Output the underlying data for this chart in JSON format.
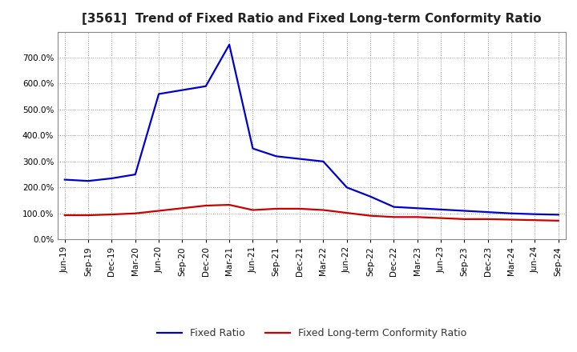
{
  "title": "[3561]  Trend of Fixed Ratio and Fixed Long-term Conformity Ratio",
  "title_fontsize": 11,
  "background_color": "#ffffff",
  "plot_bg_color": "#ffffff",
  "grid_color": "#999999",
  "fixed_ratio_color": "#0000cc",
  "fixed_ltcr_color": "#cc0000",
  "fixed_ratio_label": "Fixed Ratio",
  "fixed_ltcr_label": "Fixed Long-term Conformity Ratio",
  "ylim": [
    0.0,
    800.0
  ],
  "yticks": [
    0,
    100,
    200,
    300,
    400,
    500,
    600,
    700
  ],
  "fixed_ratio": [
    230,
    225,
    235,
    250,
    560,
    575,
    590,
    750,
    350,
    320,
    310,
    300,
    200,
    165,
    125,
    120,
    115,
    110,
    105,
    100,
    97,
    95
  ],
  "fixed_ltcr": [
    93,
    93,
    96,
    100,
    110,
    120,
    130,
    133,
    113,
    118,
    118,
    113,
    102,
    91,
    86,
    86,
    82,
    78,
    78,
    76,
    74,
    72
  ],
  "xtick_labels": [
    "Jun-19",
    "Sep-19",
    "Dec-19",
    "Mar-20",
    "Jun-20",
    "Sep-20",
    "Dec-20",
    "Mar-21",
    "Jun-21",
    "Sep-21",
    "Dec-21",
    "Mar-22",
    "Jun-22",
    "Sep-22",
    "Dec-22",
    "Mar-23",
    "Jun-23",
    "Sep-23",
    "Dec-23",
    "Mar-24",
    "Jun-24",
    "Sep-24"
  ],
  "line_width": 1.6,
  "legend_fontsize": 9,
  "tick_fontsize": 7.5,
  "title_color": "#222222"
}
